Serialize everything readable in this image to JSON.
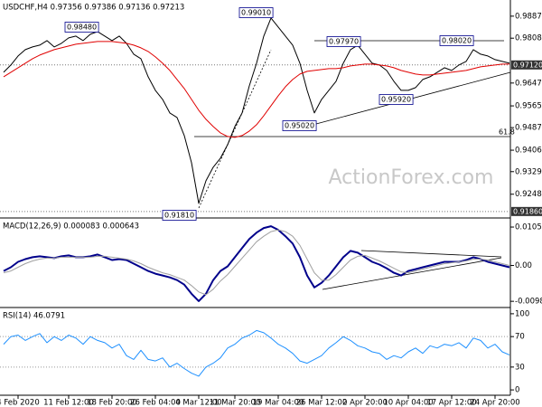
{
  "chart_data": [
    {
      "type": "line",
      "title": "USDCHF,H4 0.97356 0.97386 0.97136 0.97213",
      "xlim": [
        0,
        70
      ],
      "ylim": [
        0.9166,
        0.9945
      ],
      "yticks": [
        {
          "value": 0.9887,
          "label": "0.98870"
        },
        {
          "value": 0.9808,
          "label": "0.98080"
        },
        {
          "value": 0.9647,
          "label": "0.96470"
        },
        {
          "value": 0.9565,
          "label": "0.95650"
        },
        {
          "value": 0.9487,
          "label": "0.94870"
        },
        {
          "value": 0.9406,
          "label": "0.94060"
        },
        {
          "value": 0.9329,
          "label": "0.93290"
        },
        {
          "value": 0.9248,
          "label": "0.92480"
        }
      ],
      "price_tags": [
        {
          "value": 0.9712,
          "label": "0.97120"
        },
        {
          "value": 0.9186,
          "label": "0.91860"
        }
      ],
      "annotations": [
        "0.98480",
        "0.99010",
        "0.97970",
        "0.98020",
        "0.95920",
        "0.95020",
        "0.91810",
        "61.8"
      ],
      "watermark": "ActionForex.com",
      "series": [
        {
          "color": "#000000",
          "values": [
            0.96858,
            0.97117,
            0.97442,
            0.97669,
            0.97766,
            0.97831,
            0.97994,
            0.97766,
            0.97896,
            0.98091,
            0.98156,
            0.97994,
            0.98221,
            0.98318,
            0.98156,
            0.97994,
            0.98156,
            0.97896,
            0.97507,
            0.97344,
            0.96695,
            0.96208,
            0.95884,
            0.95397,
            0.95234,
            0.94585,
            0.93611,
            0.92151,
            0.92962,
            0.93449,
            0.93774,
            0.94261,
            0.9491,
            0.95397,
            0.96371,
            0.97182,
            0.98156,
            0.98805,
            0.9848,
            0.98156,
            0.97831,
            0.97182,
            0.96208,
            0.95397,
            0.95884,
            0.96208,
            0.96533,
            0.97182,
            0.97669,
            0.97831,
            0.97507,
            0.97182,
            0.97117,
            0.96922,
            0.96533,
            0.96208,
            0.96208,
            0.96306,
            0.96598,
            0.96695,
            0.96858,
            0.9702,
            0.96922,
            0.97117,
            0.97247,
            0.97669,
            0.97507,
            0.97442,
            0.97312,
            0.97247,
            0.97182
          ]
        },
        {
          "color": "#e00000",
          "values": [
            0.96695,
            0.96858,
            0.9702,
            0.97182,
            0.97344,
            0.97474,
            0.97572,
            0.97669,
            0.97734,
            0.97799,
            0.97864,
            0.97896,
            0.97929,
            0.97961,
            0.97961,
            0.97961,
            0.97929,
            0.97896,
            0.97831,
            0.97734,
            0.97604,
            0.97409,
            0.97182,
            0.96922,
            0.96598,
            0.96273,
            0.95884,
            0.95494,
            0.95169,
            0.9491,
            0.94683,
            0.94553,
            0.9452,
            0.94585,
            0.94748,
            0.94975,
            0.95299,
            0.95657,
            0.96014,
            0.96338,
            0.96598,
            0.96793,
            0.9689,
            0.96922,
            0.96955,
            0.96987,
            0.96987,
            0.9702,
            0.97085,
            0.97117,
            0.9715,
            0.9715,
            0.97117,
            0.97085,
            0.9702,
            0.96922,
            0.96858,
            0.96793,
            0.9676,
            0.9676,
            0.96793,
            0.96825,
            0.96858,
            0.9689,
            0.96922,
            0.96987,
            0.97052,
            0.97085,
            0.97117,
            0.9715,
            0.9715
          ]
        }
      ]
    },
    {
      "type": "line",
      "title": "MACD(12,26,9) 0.000083 0.000643",
      "xlim": [
        0,
        70
      ],
      "ylim": [
        -0.0115,
        0.01275
      ],
      "yticks": [
        0.010513,
        {
          "value": 0,
          "label": "0.00"
        },
        -0.009804
      ],
      "series": [
        {
          "color": "#00008b",
          "values": [
            -0.0015,
            -0.0005,
            0.001,
            0.00175,
            0.00225,
            0.0025,
            0.00225,
            0.002,
            0.0025,
            0.00275,
            0.00225,
            0.00225,
            0.0025,
            0.003,
            0.00225,
            0.0015,
            0.00175,
            0.0015,
            0.0005,
            -0.0005,
            -0.0015,
            -0.00225,
            -0.00275,
            -0.00325,
            -0.004,
            -0.00525,
            -0.00775,
            -0.00975,
            -0.00775,
            -0.004,
            -0.0015,
            -0.00025,
            0.00225,
            0.00475,
            0.00725,
            0.009,
            0.01025,
            0.01075,
            0.00975,
            0.008,
            0.006,
            0.00225,
            -0.00275,
            -0.006,
            -0.00475,
            -0.00275,
            -0.00025,
            0.00225,
            0.004,
            0.0035,
            0.00225,
            0.001,
            0.00025,
            -0.00075,
            -0.002,
            -0.00275,
            -0.0015,
            -0.001,
            -0.0005,
            0,
            0.0005,
            0.001,
            0.001,
            0.001,
            0.0015,
            0.00225,
            0.00175,
            0.001,
            0.0005,
            0,
            -0.0005
          ]
        },
        {
          "color": "#a0a0a0",
          "values": [
            -0.002,
            -0.0015,
            -0.0005,
            0.0005,
            0.00125,
            0.00175,
            0.002,
            0.002,
            0.00225,
            0.00225,
            0.00225,
            0.00225,
            0.00225,
            0.0025,
            0.0025,
            0.00225,
            0.002,
            0.00175,
            0.00125,
            0.0005,
            -0.0005,
            -0.00125,
            -0.002,
            -0.0025,
            -0.00325,
            -0.004,
            -0.0055,
            -0.00725,
            -0.008,
            -0.0065,
            -0.00425,
            -0.0025,
            -0.00025,
            0.002,
            0.00425,
            0.0065,
            0.008,
            0.00925,
            0.00975,
            0.00925,
            0.008,
            0.0055,
            0.00175,
            -0.002,
            -0.004,
            -0.004,
            -0.0025,
            -0.0005,
            0.0015,
            0.0025,
            0.00275,
            0.002,
            0.00125,
            0.00025,
            -0.00075,
            -0.00175,
            -0.002,
            -0.0015,
            -0.001,
            -0.0005,
            0,
            0.0005,
            0.00075,
            0.001,
            0.00125,
            0.00175,
            0.00175,
            0.0015,
            0.001,
            0.0005,
            0
          ]
        }
      ]
    },
    {
      "type": "line",
      "title": "RSI(14) 46.0791",
      "xlim": [
        0,
        70
      ],
      "ylim": [
        -7,
        107
      ],
      "yticks": [
        100,
        70,
        30,
        0
      ],
      "xticks": [
        {
          "value": 2,
          "label": "4 Feb 2020"
        },
        {
          "value": 9,
          "label": "11 Feb 12:00"
        },
        {
          "value": 15,
          "label": "18 Feb 20:00"
        },
        {
          "value": 21,
          "label": "26 Feb 04:00"
        },
        {
          "value": 27,
          "label": "4 Mar 12:00"
        },
        {
          "value": 32,
          "label": "11 Mar 20:00"
        },
        {
          "value": 38,
          "label": "19 Mar 04:00"
        },
        {
          "value": 44,
          "label": "26 Mar 12:00"
        },
        {
          "value": 50,
          "label": "2 Apr 20:00"
        },
        {
          "value": 56,
          "label": "10 Apr 04:00"
        },
        {
          "value": 62,
          "label": "17 Apr 12:00"
        },
        {
          "value": 68,
          "label": "24 Apr 20:00"
        }
      ],
      "series": [
        {
          "color": "#1e90ff",
          "values": [
            60,
            70,
            72,
            65,
            70,
            74,
            62,
            70,
            65,
            72,
            68,
            60,
            70,
            65,
            62,
            55,
            60,
            45,
            40,
            52,
            40,
            38,
            42,
            30,
            35,
            28,
            22,
            18,
            30,
            35,
            42,
            55,
            60,
            68,
            72,
            78,
            75,
            68,
            60,
            55,
            48,
            38,
            35,
            40,
            45,
            55,
            62,
            70,
            65,
            58,
            55,
            50,
            48,
            40,
            45,
            42,
            50,
            55,
            48,
            58,
            55,
            60,
            58,
            62,
            55,
            68,
            65,
            55,
            60,
            50,
            46
          ]
        }
      ]
    }
  ]
}
